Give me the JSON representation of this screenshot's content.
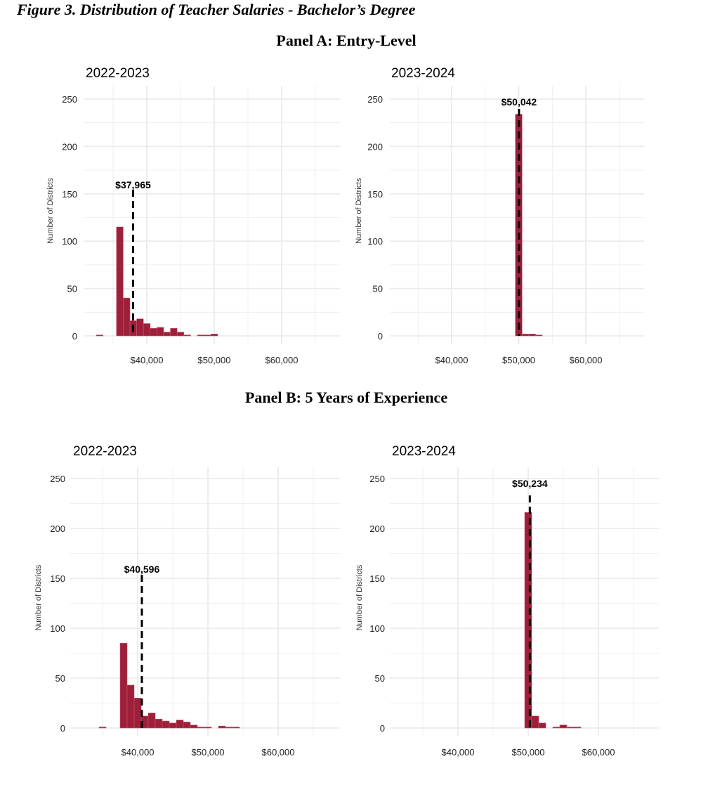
{
  "figure_title": "Figure 3. Distribution of Teacher Salaries - Bachelor’s Degree",
  "panel_headings": [
    "Panel A: Entry-Level",
    "Panel B: 5 Years of Experience"
  ],
  "colors": {
    "bar": "#9e1f3a",
    "bar_edge": "#c45a6e",
    "median_line": "#000000",
    "grid": "#ebebeb"
  },
  "chart_data": [
    {
      "type": "bar",
      "panel": "A",
      "title": "2022-2023",
      "xlabel": "",
      "ylabel": "Number of Districts",
      "bin_width": 1000,
      "xticks": [
        "$40,000",
        "$50,000",
        "$60,000"
      ],
      "xtick_values": [
        40000,
        50000,
        60000
      ],
      "yticks": [
        0,
        50,
        100,
        150,
        200,
        250
      ],
      "ylim": [
        0,
        262
      ],
      "grid": true,
      "bins": [
        33000,
        36000,
        37000,
        38000,
        39000,
        40000,
        41000,
        42000,
        43000,
        44000,
        45000,
        46000,
        48000,
        49000,
        50000
      ],
      "values": [
        1,
        115,
        40,
        16,
        18,
        13,
        8,
        9,
        4,
        8,
        4,
        1,
        1,
        1,
        2
      ],
      "median": 37965,
      "median_label": "$37,965"
    },
    {
      "type": "bar",
      "panel": "A",
      "title": "2023-2024",
      "xlabel": "",
      "ylabel": "Number of Districts",
      "bin_width": 1000,
      "xticks": [
        "$40,000",
        "$50,000",
        "$60,000"
      ],
      "xtick_values": [
        40000,
        50000,
        60000
      ],
      "yticks": [
        0,
        50,
        100,
        150,
        200,
        250
      ],
      "ylim": [
        0,
        262
      ],
      "grid": true,
      "bins": [
        50000,
        51000,
        52000,
        53000
      ],
      "values": [
        234,
        2,
        2,
        1
      ],
      "median": 50042,
      "median_label": "$50,042"
    },
    {
      "type": "bar",
      "panel": "B",
      "title": "2022-2023",
      "xlabel": "",
      "ylabel": "Number of Districts",
      "bin_width": 1000,
      "xticks": [
        "$40,000",
        "$50,000",
        "$60,000"
      ],
      "xtick_values": [
        40000,
        50000,
        60000
      ],
      "yticks": [
        0,
        50,
        100,
        150,
        200,
        250
      ],
      "ylim": [
        0,
        262
      ],
      "grid": true,
      "bins": [
        35000,
        38000,
        39000,
        40000,
        41000,
        42000,
        43000,
        44000,
        45000,
        46000,
        47000,
        48000,
        49000,
        50000,
        52000,
        53000,
        54000
      ],
      "values": [
        1,
        85,
        43,
        30,
        12,
        15,
        9,
        7,
        5,
        8,
        6,
        3,
        1,
        1,
        2,
        1,
        1
      ],
      "median": 40596,
      "median_label": "$40,596"
    },
    {
      "type": "bar",
      "panel": "B",
      "title": "2023-2024",
      "xlabel": "",
      "ylabel": "Number of Districts",
      "bin_width": 1000,
      "xticks": [
        "$40,000",
        "$50,000",
        "$60,000"
      ],
      "xtick_values": [
        40000,
        50000,
        60000
      ],
      "yticks": [
        0,
        50,
        100,
        150,
        200,
        250
      ],
      "ylim": [
        0,
        262
      ],
      "grid": true,
      "bins": [
        50000,
        51000,
        52000,
        54000,
        55000,
        56000,
        57000
      ],
      "values": [
        216,
        12,
        5,
        1,
        3,
        1,
        1
      ],
      "median": 50234,
      "median_label": "$50,234"
    }
  ]
}
